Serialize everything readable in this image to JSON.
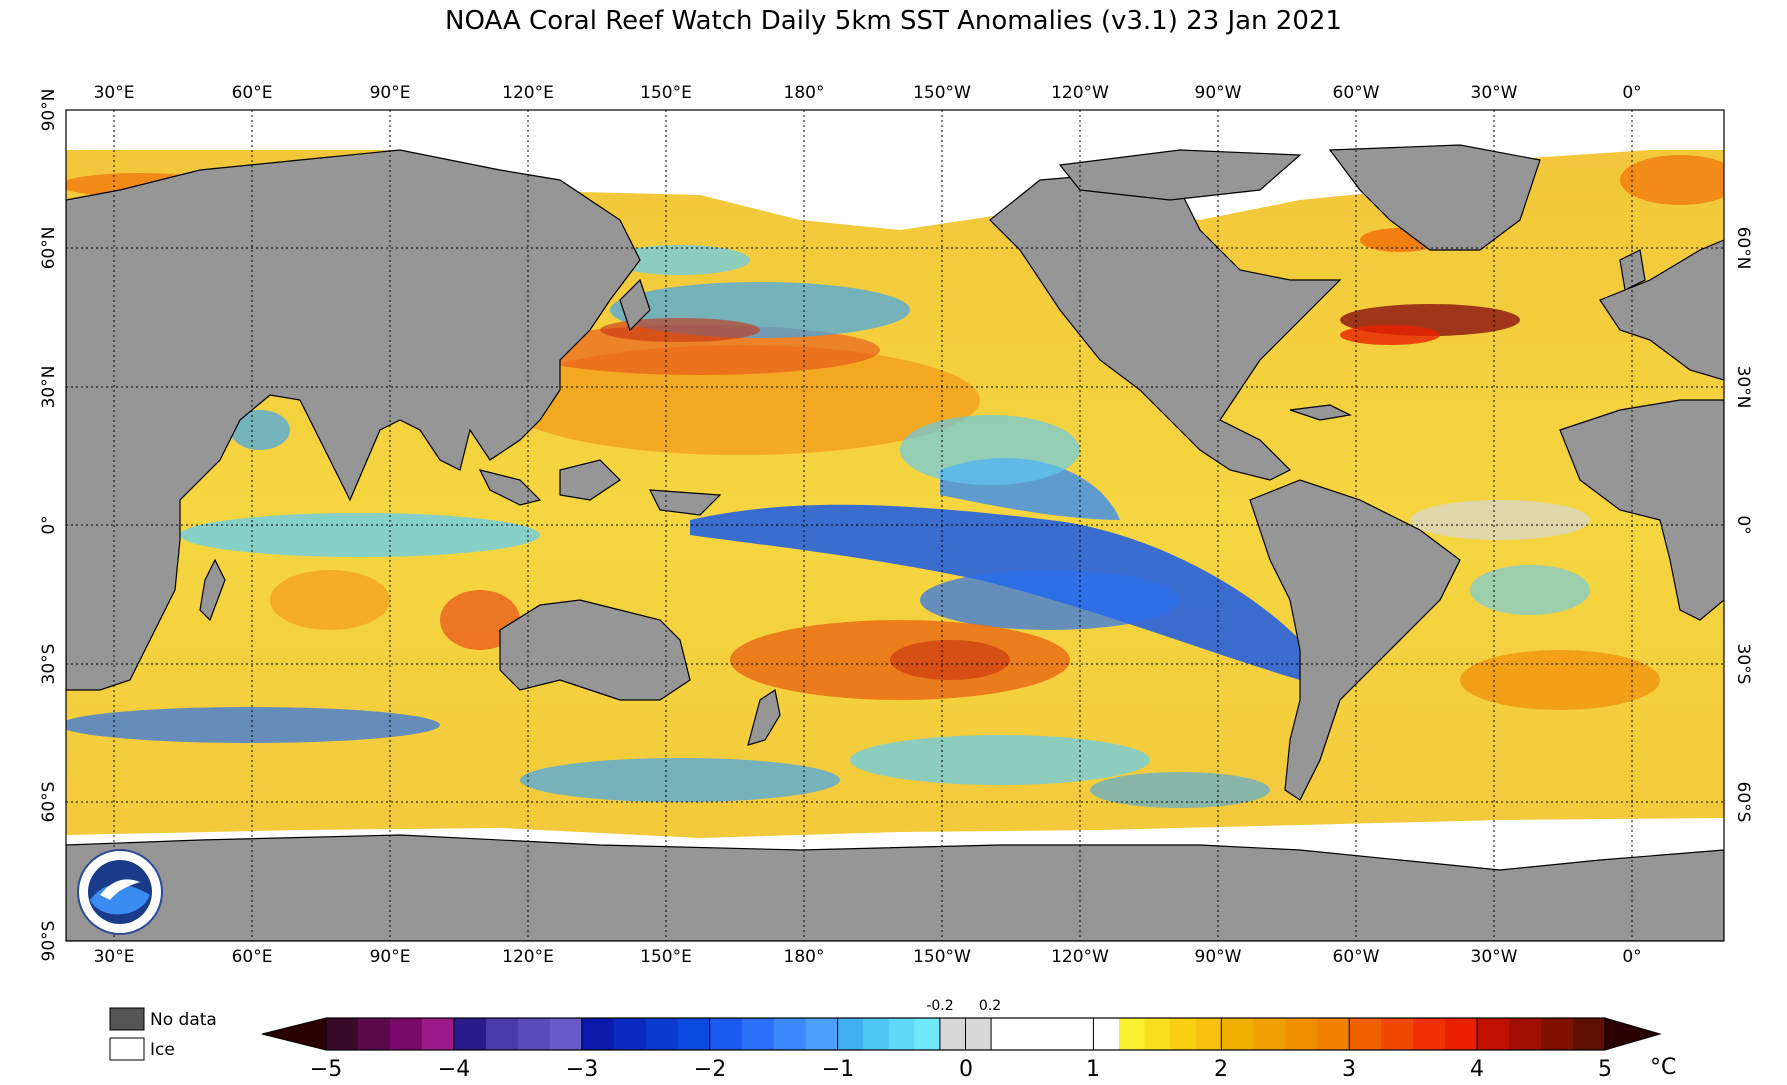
{
  "title": "NOAA Coral Reef Watch Daily 5km SST Anomalies  (v3.1)   23 Jan 2021",
  "longitude_labels": [
    "30°E",
    "60°E",
    "90°E",
    "120°E",
    "150°E",
    "180°",
    "150°W",
    "120°W",
    "90°W",
    "60°W",
    "30°W",
    "0°"
  ],
  "latitude_labels_left": [
    "90°N",
    "60°N",
    "30°N",
    "0°",
    "30°S",
    "60°S",
    "90°S"
  ],
  "latitude_labels_right": [
    "60°N",
    "30°N",
    "0°",
    "30°S",
    "60°S"
  ],
  "legend": {
    "no_data": "No data",
    "ice": "Ice"
  },
  "colorbar": {
    "ticks": [
      "−5",
      "−4",
      "−3",
      "−2",
      "−1",
      "0",
      "1",
      "2",
      "3",
      "4",
      "5"
    ],
    "inner_ticks": [
      "-0.2",
      "0.2"
    ],
    "unit": "°C",
    "colors": {
      "neg5": [
        "#3a0a2a",
        "#5a0a4a",
        "#7a0a6a",
        "#9a1a8a"
      ],
      "neg4": [
        "#2a1a8a",
        "#4a3aaa",
        "#5a4aba",
        "#6a5aca"
      ],
      "neg3": [
        "#0a1aaa",
        "#0a2ac0",
        "#0a3ad0",
        "#0a4ae0"
      ],
      "neg2": [
        "#1a5af0",
        "#2a70f8",
        "#3a88fa",
        "#4aa0fc"
      ],
      "neg1": [
        "#40b0f0",
        "#50c8f4",
        "#60d8f8",
        "#70e8fa"
      ],
      "zero": [
        "#d8d8d8",
        "#d8d8d8"
      ],
      "pos1": [
        "#f8f030",
        "#f8e020",
        "#f8d010",
        "#f8c010"
      ],
      "pos2": [
        "#f0b000",
        "#f0a000",
        "#f09000",
        "#f08000"
      ],
      "pos3": [
        "#f06000",
        "#f04800",
        "#f03000",
        "#e82000"
      ],
      "pos4": [
        "#c01000",
        "#a01000",
        "#801000",
        "#601000"
      ],
      "pos5": [
        "#2a0000"
      ]
    }
  },
  "map_colors": {
    "land": "#969696",
    "ice": "#ffffff",
    "neutral": "#d6d6d6"
  }
}
